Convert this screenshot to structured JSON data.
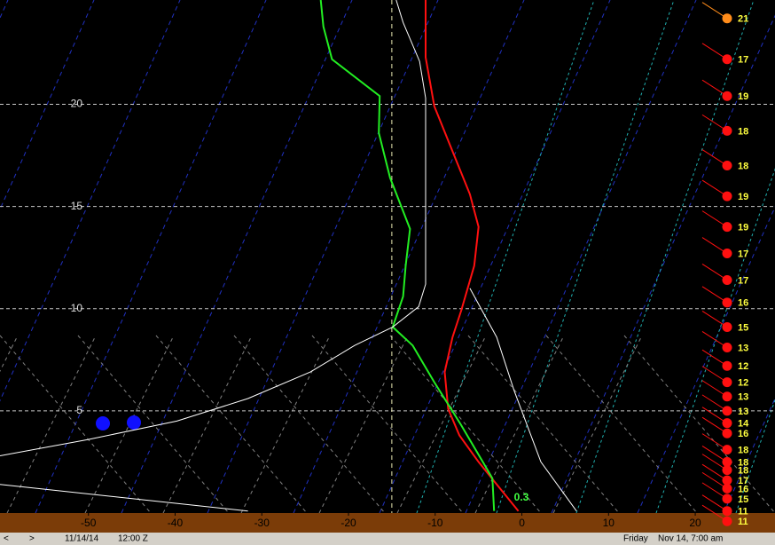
{
  "chart_data": {
    "type": "line",
    "xlim": [
      -60.2,
      29.2
    ],
    "ylim": [
      0,
      25.1
    ],
    "xticks": [
      -50,
      -40,
      -30,
      -20,
      -10,
      0,
      10,
      20
    ],
    "yticks": [
      5,
      10,
      15,
      20
    ],
    "grid": true,
    "vline": -15,
    "series": [
      {
        "color": "#ff1010",
        "x": [
          -11.1,
          -11.1,
          -10.1,
          -8.0,
          -6.0,
          -5.0,
          -5.5,
          -7.0,
          -8.0,
          -8.9,
          -8.5,
          -7.2,
          -5.0,
          -2.9,
          -0.4
        ],
        "values": [
          25.1,
          22.3,
          19.9,
          17.7,
          15.6,
          14.0,
          12.1,
          9.9,
          8.6,
          6.9,
          5.1,
          3.8,
          2.5,
          1.4,
          0.1
        ]
      },
      {
        "color": "#22ee22",
        "x": [
          -23.2,
          -22.9,
          -21.9,
          -16.4,
          -16.5,
          -15.2,
          -12.9,
          -13.4,
          -13.7,
          -14.9,
          -12.6,
          -10.1,
          -7.0,
          -4.5,
          -3.4,
          -3.2
        ],
        "values": [
          25.1,
          23.8,
          22.2,
          20.4,
          18.6,
          16.4,
          13.9,
          12.1,
          10.6,
          9.1,
          8.2,
          6.4,
          4.3,
          2.5,
          1.7,
          0.1
        ]
      },
      {
        "color": "#ffffff",
        "x": [
          -14.5,
          -13.7,
          -11.8,
          -11.1,
          -11.1,
          -11.9,
          -14.9,
          -19.3,
          -24.4,
          -31.6,
          -39.8,
          -50,
          -60.2
        ],
        "values": [
          25.1,
          24.0,
          22.1,
          20.3,
          11.2,
          10.1,
          9.1,
          8.2,
          6.9,
          5.6,
          4.5,
          3.6,
          2.8
        ]
      },
      {
        "color": "#ffffff",
        "x": [
          -6.0,
          -2.9,
          -0.9,
          2.2,
          6.3
        ],
        "values": [
          11.0,
          8.6,
          6.0,
          2.5,
          0.1
        ]
      },
      {
        "color": "#ffffff",
        "x": [
          -60.2,
          -31.6
        ],
        "values": [
          1.4,
          0.1
        ]
      }
    ],
    "annotation": "0.3",
    "winds": {
      "heights": [
        24.2,
        22.2,
        20.4,
        18.7,
        17.0,
        15.5,
        14.0,
        12.7,
        11.4,
        10.3,
        9.1,
        8.1,
        7.2,
        6.4,
        5.7,
        5.0,
        4.4,
        3.9,
        3.1,
        2.5,
        2.1,
        1.6,
        1.2,
        0.7,
        0.1,
        -0.4
      ],
      "values": [
        21,
        17,
        19,
        18,
        18,
        19,
        19,
        17,
        17,
        16,
        15,
        13,
        12,
        12,
        13,
        13,
        14,
        16,
        18,
        18,
        18,
        17,
        16,
        15,
        11,
        11
      ],
      "colors": [
        "#ff8c1a",
        "#ff1010",
        "#ff1010",
        "#ff1010",
        "#ff1010",
        "#ff1010",
        "#ff1010",
        "#ff1010",
        "#ff1010",
        "#ff1010",
        "#ff1010",
        "#ff1010",
        "#ff1010",
        "#ff1010",
        "#ff1010",
        "#ff1010",
        "#ff1010",
        "#ff1010",
        "#ff1010",
        "#ff1010",
        "#ff1010",
        "#ff1010",
        "#ff1010",
        "#ff1010",
        "#ff1010",
        "#ff1010"
      ]
    }
  },
  "status": {
    "date": "11/14/14",
    "time": "12:00 Z",
    "day": "Friday",
    "local": "Nov 14, 7:00 am"
  }
}
